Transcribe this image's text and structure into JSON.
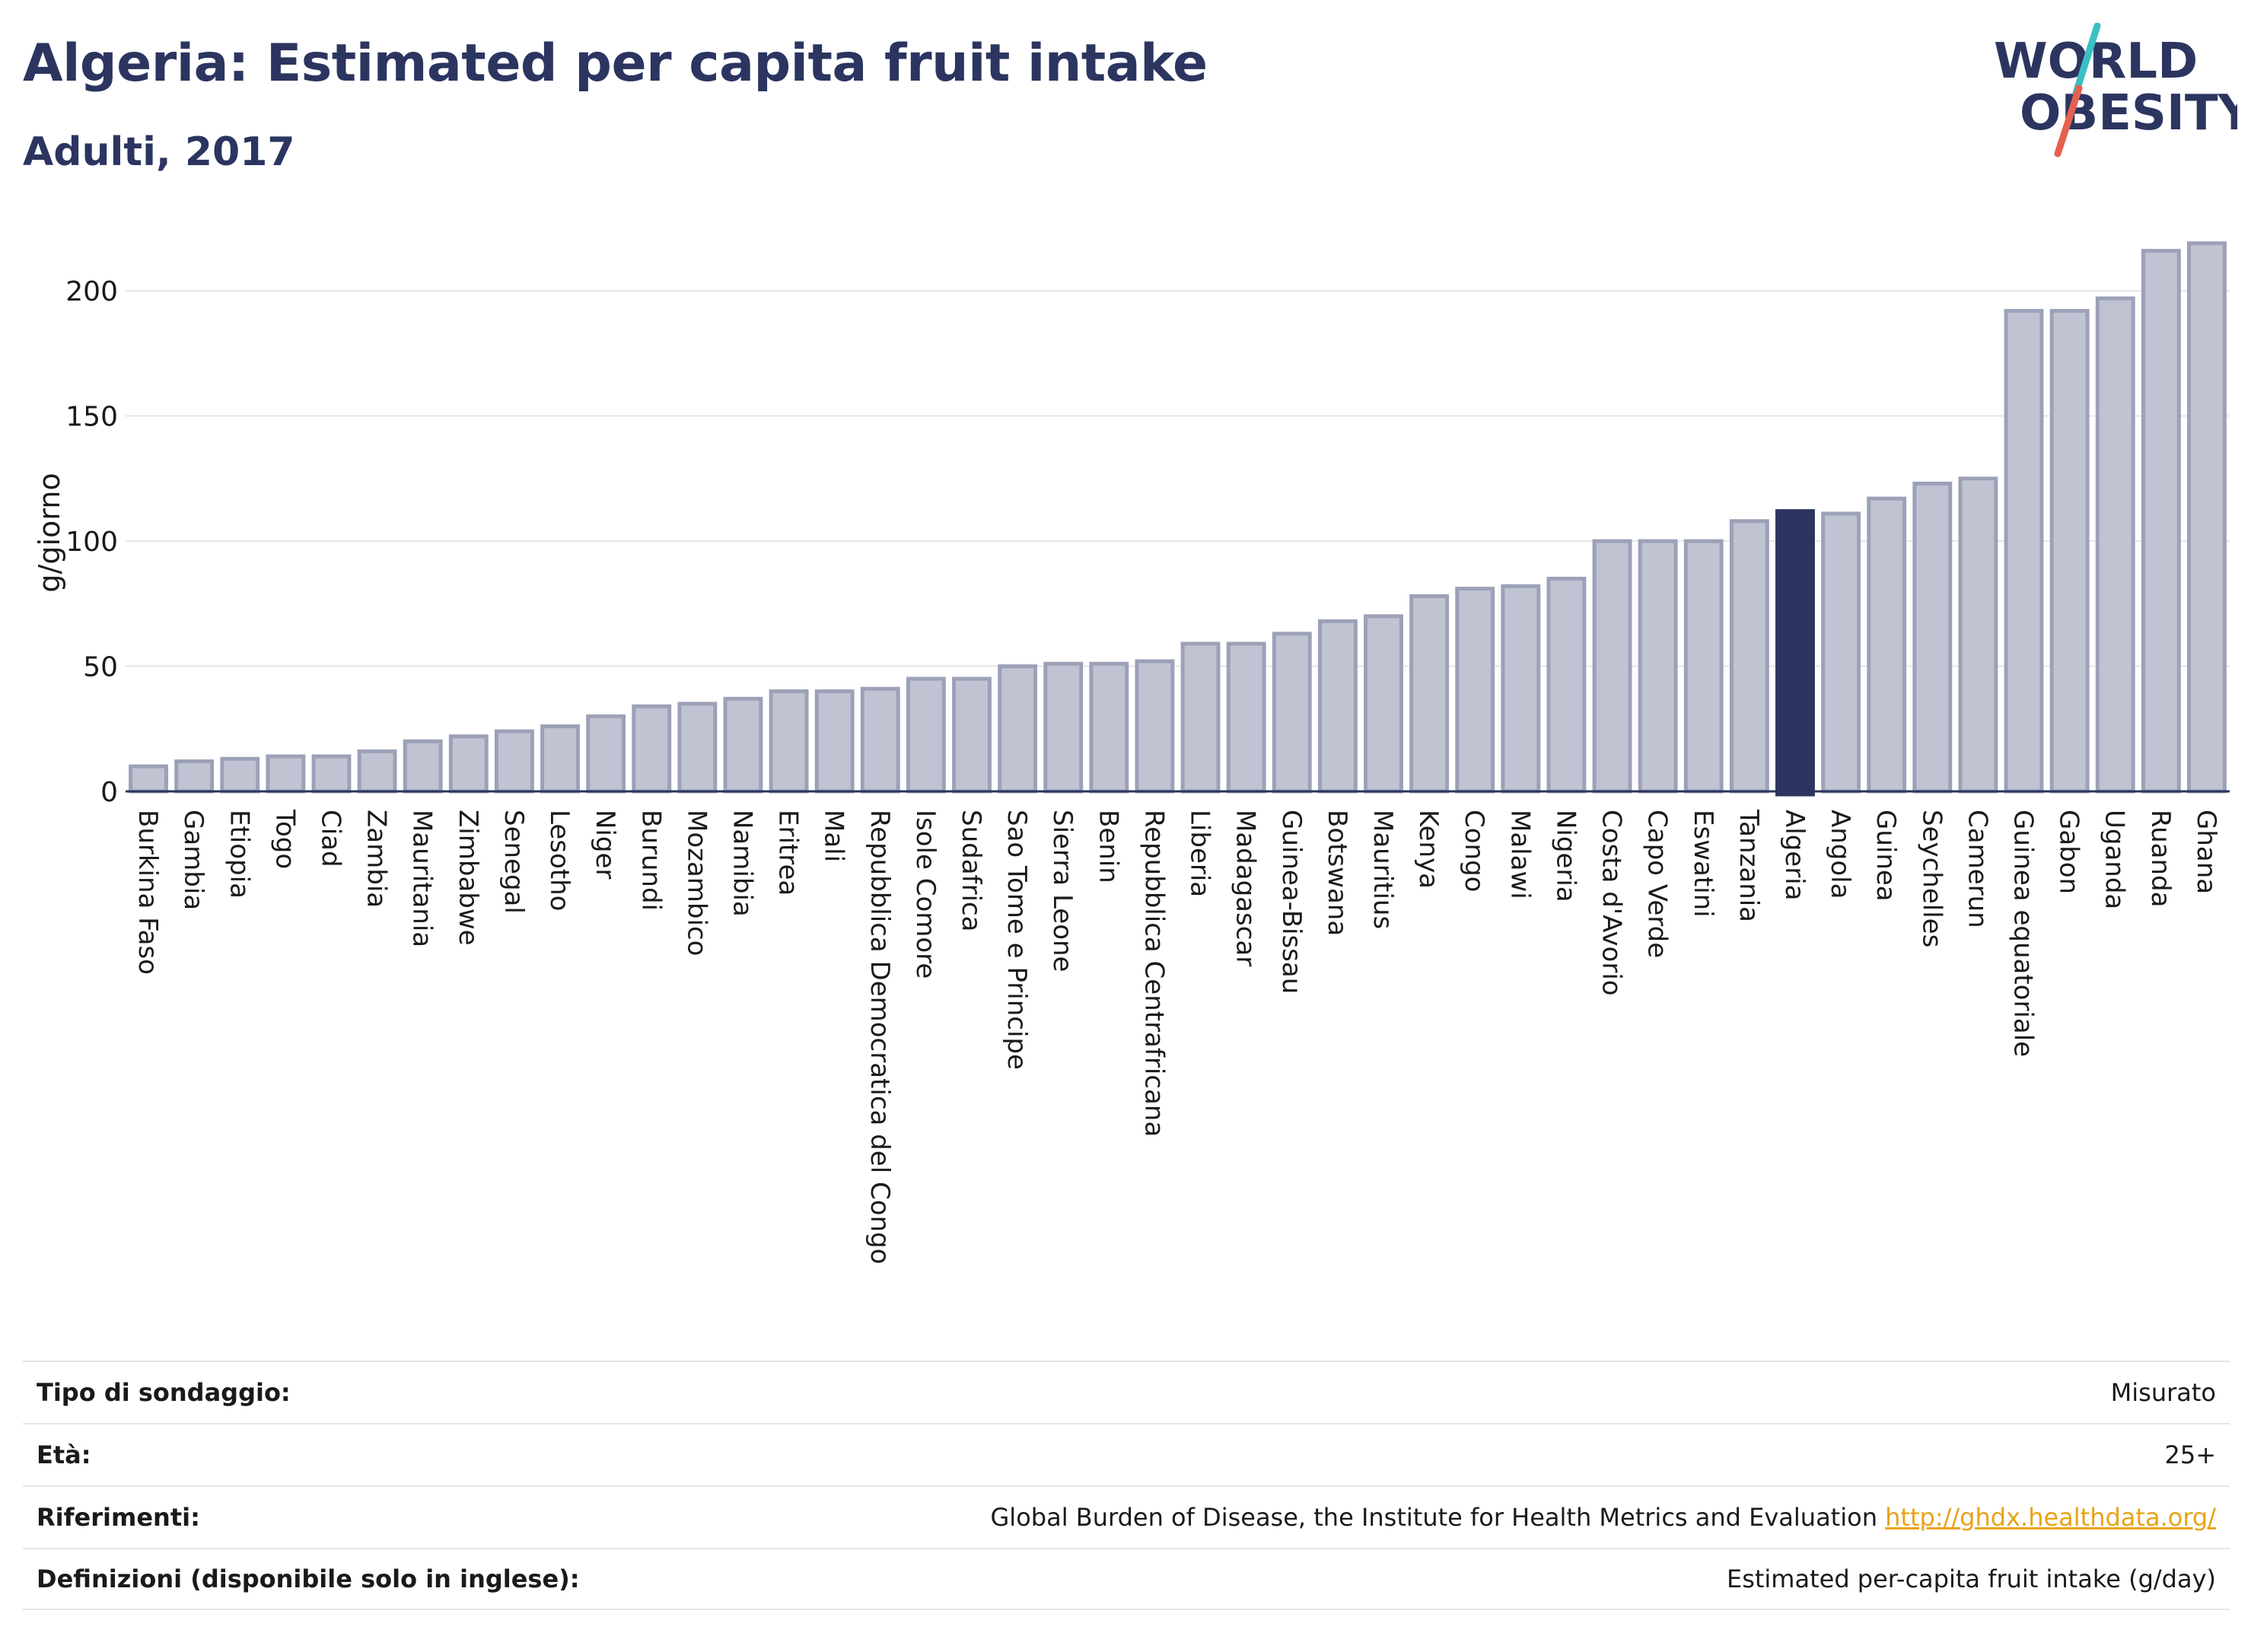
{
  "title": "Algeria: Estimated per capita fruit intake",
  "subtitle": "Adulti, 2017",
  "logo": {
    "line1": "WORLD",
    "line2": "OBESITY",
    "accent_colors": [
      "#3bbfc4",
      "#e5604f"
    ]
  },
  "colors": {
    "bar": "#bfc3d2",
    "bar_border": "#9ca1b8",
    "highlight": "#2b3560",
    "text": "#2b3560",
    "grid": "#e6e6e6"
  },
  "chart_data": {
    "type": "bar",
    "ylabel": "g/giorno",
    "ylim": [
      0,
      225
    ],
    "yticks": [
      0,
      50,
      100,
      150,
      200
    ],
    "highlight": "Algeria",
    "grid": true,
    "categories": [
      "Burkina Faso",
      "Gambia",
      "Etiopia",
      "Togo",
      "Ciad",
      "Zambia",
      "Mauritania",
      "Zimbabwe",
      "Senegal",
      "Lesotho",
      "Niger",
      "Burundi",
      "Mozambico",
      "Namibia",
      "Eritrea",
      "Mali",
      "Repubblica Democratica del Congo",
      "Isole Comore",
      "Sudafrica",
      "Sao Tome e Principe",
      "Sierra Leone",
      "Benin",
      "Repubblica Centrafricana",
      "Liberia",
      "Madagascar",
      "Guinea-Bissau",
      "Botswana",
      "Mauritius",
      "Kenya",
      "Congo",
      "Malawi",
      "Nigeria",
      "Costa d'Avorio",
      "Capo Verde",
      "Eswatini",
      "Tanzania",
      "Algeria",
      "Angola",
      "Guinea",
      "Seychelles",
      "Camerun",
      "Guinea equatoriale",
      "Gabon",
      "Uganda",
      "Ruanda",
      "Ghana"
    ],
    "values": [
      10,
      12,
      13,
      14,
      14,
      16,
      20,
      22,
      24,
      26,
      30,
      34,
      35,
      37,
      40,
      40,
      41,
      45,
      45,
      50,
      51,
      51,
      52,
      59,
      59,
      63,
      68,
      70,
      78,
      81,
      82,
      85,
      100,
      100,
      100,
      108,
      112,
      111,
      117,
      123,
      125,
      192,
      192,
      197,
      216,
      219
    ]
  },
  "info": [
    {
      "label": "Tipo di sondaggio:",
      "value": "Misurato"
    },
    {
      "label": "Età:",
      "value": "25+"
    },
    {
      "label": "Riferimenti:",
      "value": "Global Burden of Disease, the Institute for Health Metrics and Evaluation",
      "link": "http://ghdx.healthdata.org/"
    },
    {
      "label": "Definizioni (disponibile solo in inglese):",
      "value": "Estimated per-capita fruit intake (g/day)"
    }
  ]
}
